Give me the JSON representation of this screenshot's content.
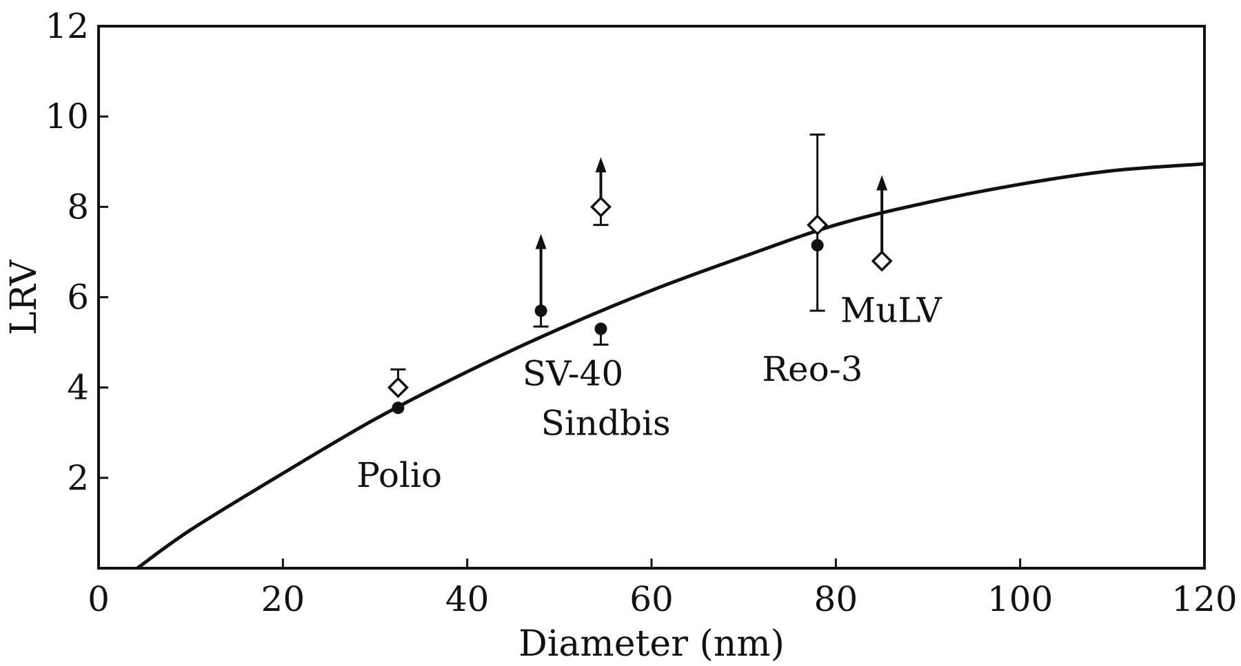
{
  "chart_data": {
    "type": "scatter",
    "title": "",
    "xlabel": "Diameter (nm)",
    "ylabel": "LRV",
    "xlim": [
      0,
      120
    ],
    "ylim": [
      0,
      12
    ],
    "x_ticks": [
      0,
      20,
      40,
      60,
      80,
      100,
      120
    ],
    "y_ticks": [
      2,
      4,
      6,
      8,
      10,
      12
    ],
    "x_tick_labels": [
      "0",
      "20",
      "40",
      "60",
      "80",
      "100",
      "120"
    ],
    "y_tick_labels": [
      "2",
      "4",
      "6",
      "8",
      "10",
      "12"
    ],
    "grid": false,
    "legend": "none",
    "curve": {
      "x": [
        4.2,
        10,
        20,
        30,
        40,
        50,
        60,
        70,
        80,
        90,
        100,
        110,
        120
      ],
      "y": [
        0.0,
        0.85,
        2.1,
        3.3,
        4.35,
        5.3,
        6.15,
        6.9,
        7.6,
        8.1,
        8.5,
        8.8,
        8.95
      ]
    },
    "series": [
      {
        "marker": "open-diamond",
        "points": [
          {
            "virus": "Polio",
            "x": 32.5,
            "y": 4.0,
            "error_upper": 4.4
          },
          {
            "virus": "Sindbis",
            "x": 54.5,
            "y": 8.0,
            "error_lower": 7.6,
            "arrow_to": 9.1
          },
          {
            "virus": "Reo-3",
            "x": 78,
            "y": 7.6,
            "error_upper": 9.6,
            "error_lower": 5.7
          },
          {
            "virus": "MuLV",
            "x": 85,
            "y": 6.8,
            "arrow_to": 8.7
          }
        ]
      },
      {
        "marker": "filled-circle",
        "points": [
          {
            "virus": "Polio",
            "x": 32.5,
            "y": 3.55
          },
          {
            "virus": "SV-40",
            "x": 48,
            "y": 5.7,
            "error_lower": 5.35,
            "arrow_to": 7.4
          },
          {
            "virus": "Sindbis",
            "x": 54.5,
            "y": 5.3,
            "error_lower": 4.95
          },
          {
            "virus": "Reo-3",
            "x": 78,
            "y": 7.15
          }
        ]
      }
    ],
    "annotations": [
      {
        "text": "Polio",
        "x": 28,
        "y": 1.8
      },
      {
        "text": "SV-40",
        "x": 46,
        "y": 4.05
      },
      {
        "text": "Sindbis",
        "x": 48,
        "y": 2.95
      },
      {
        "text": "Reo-3",
        "x": 72,
        "y": 4.15
      },
      {
        "text": "MuLV",
        "x": 80.5,
        "y": 5.45
      }
    ]
  }
}
